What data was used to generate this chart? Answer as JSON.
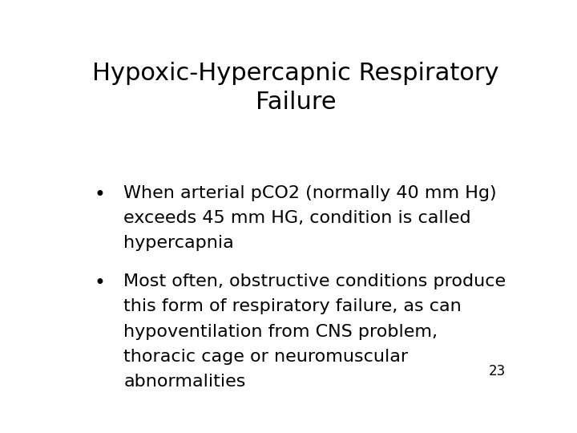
{
  "title_line1": "Hypoxic-Hypercapnic Respiratory",
  "title_line2": "Failure",
  "bullet1_lines": [
    "When arterial pCO2 (normally 40 mm Hg)",
    "exceeds 45 mm HG, condition is called",
    "hypercapnia"
  ],
  "bullet2_lines": [
    "Most often, obstructive conditions produce",
    "this form of respiratory failure, as can",
    "hypoventilation from CNS problem,",
    "thoracic cage or neuromuscular",
    "abnormalities"
  ],
  "page_number": "23",
  "background_color": "#ffffff",
  "text_color": "#000000",
  "title_fontsize": 22,
  "body_fontsize": 16,
  "page_num_fontsize": 12,
  "font_family": "DejaVu Sans"
}
